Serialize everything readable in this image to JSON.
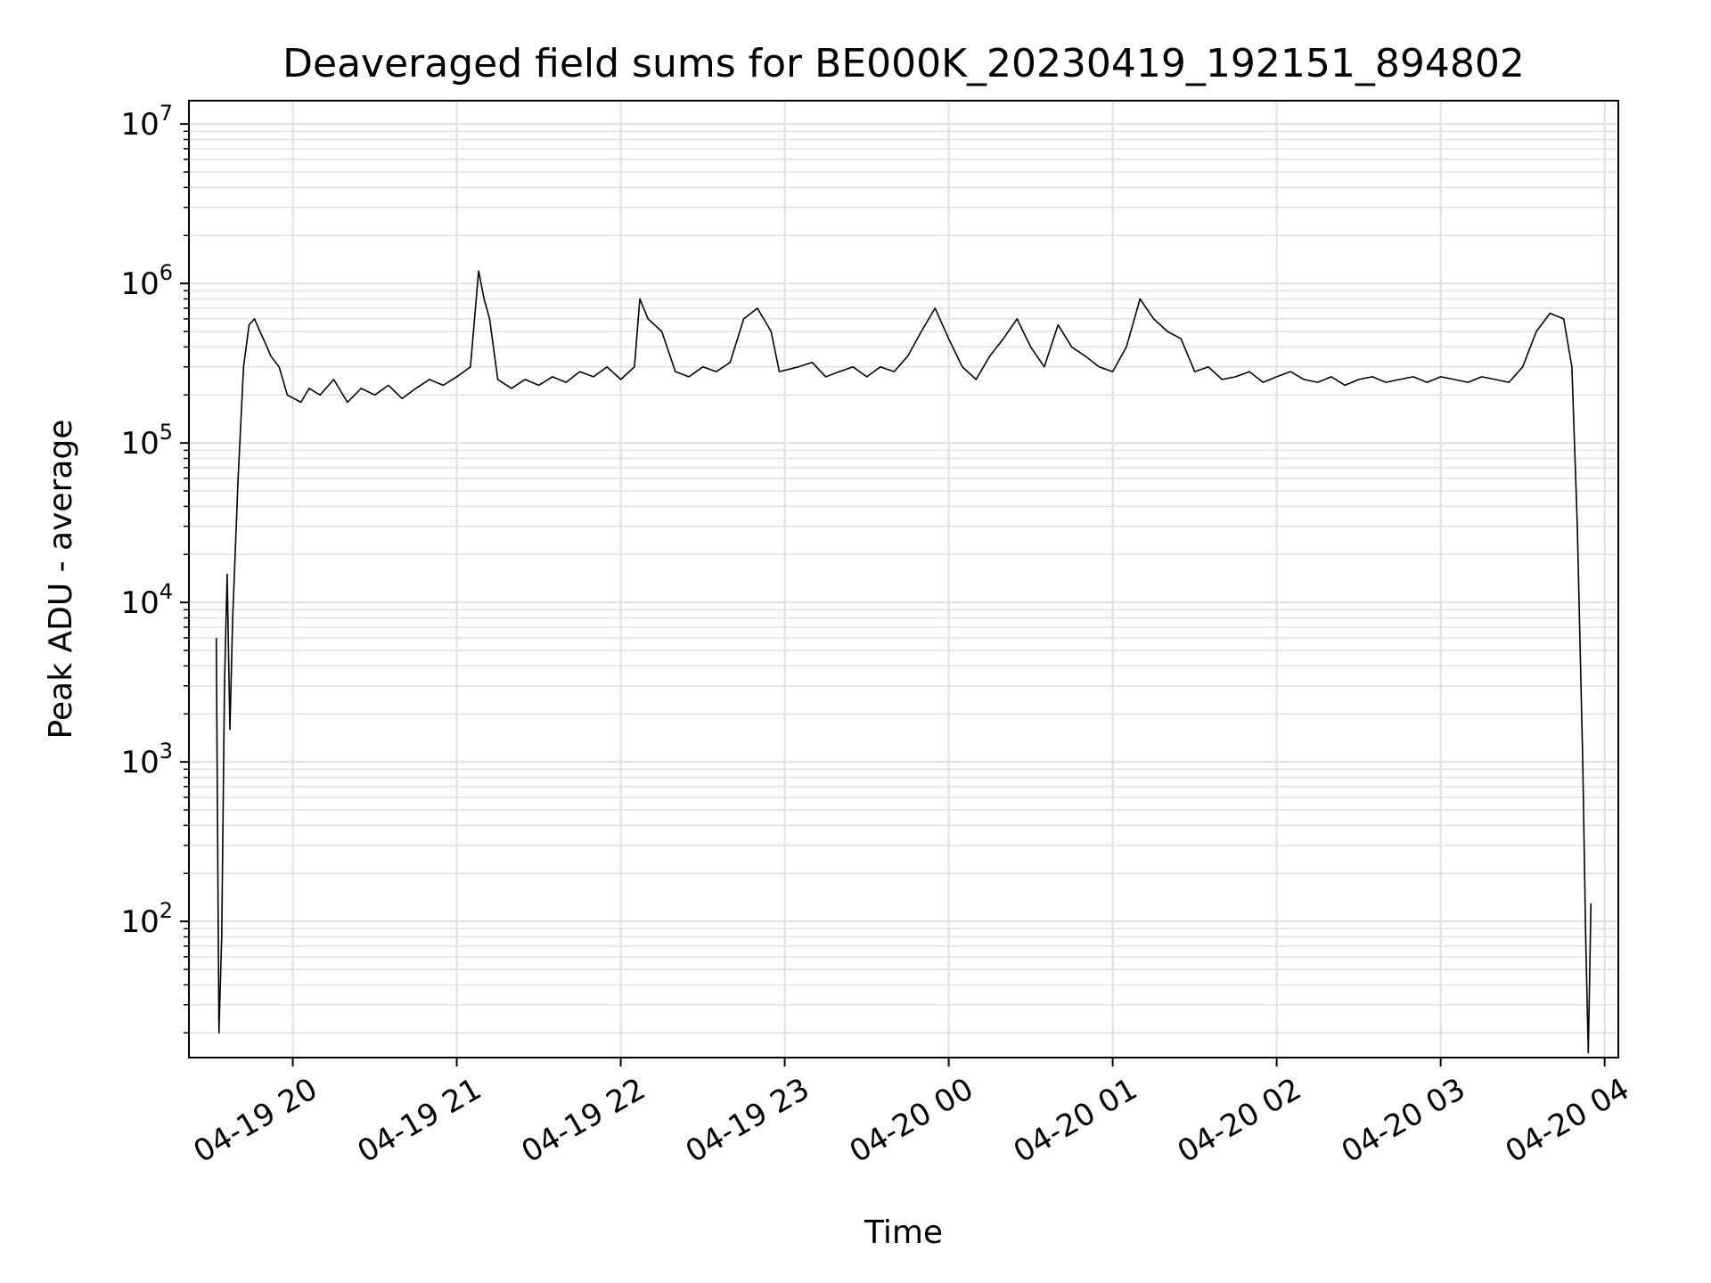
{
  "chart_data": {
    "type": "line",
    "title": "Deaveraged field sums for BE000K_20230419_192151_894802",
    "xlabel": "Time",
    "ylabel": "Peak ADU - average",
    "y_scale": "log",
    "ylim": [
      14,
      14000000
    ],
    "xlim": [
      "2023-04-19 19:22",
      "2023-04-20 04:05"
    ],
    "grid": true,
    "line_color": "#000000",
    "grid_color": "#e0e0e0",
    "x_ticks": [
      {
        "t": "2023-04-19 20:00",
        "label": "04-19 20"
      },
      {
        "t": "2023-04-19 21:00",
        "label": "04-19 21"
      },
      {
        "t": "2023-04-19 22:00",
        "label": "04-19 22"
      },
      {
        "t": "2023-04-19 23:00",
        "label": "04-19 23"
      },
      {
        "t": "2023-04-20 00:00",
        "label": "04-20 00"
      },
      {
        "t": "2023-04-20 01:00",
        "label": "04-20 01"
      },
      {
        "t": "2023-04-20 02:00",
        "label": "04-20 02"
      },
      {
        "t": "2023-04-20 03:00",
        "label": "04-20 03"
      },
      {
        "t": "2023-04-20 04:00",
        "label": "04-20 04"
      }
    ],
    "y_ticks": [
      {
        "value": 100,
        "base": "10",
        "exp": "2"
      },
      {
        "value": 1000,
        "base": "10",
        "exp": "3"
      },
      {
        "value": 10000,
        "base": "10",
        "exp": "4"
      },
      {
        "value": 100000,
        "base": "10",
        "exp": "5"
      },
      {
        "value": 1000000,
        "base": "10",
        "exp": "6"
      },
      {
        "value": 10000000,
        "base": "10",
        "exp": "7"
      }
    ],
    "series": [
      {
        "x": [
          "2023-04-19 19:32",
          "2023-04-19 19:33",
          "2023-04-19 19:34",
          "2023-04-19 19:35",
          "2023-04-19 19:36",
          "2023-04-19 19:37",
          "2023-04-19 19:38",
          "2023-04-19 19:40",
          "2023-04-19 19:42",
          "2023-04-19 19:44",
          "2023-04-19 19:46",
          "2023-04-19 19:48",
          "2023-04-19 19:50",
          "2023-04-19 19:52",
          "2023-04-19 19:55",
          "2023-04-19 19:58",
          "2023-04-19 20:03",
          "2023-04-19 20:06",
          "2023-04-19 20:10",
          "2023-04-19 20:15",
          "2023-04-19 20:20",
          "2023-04-19 20:25",
          "2023-04-19 20:30",
          "2023-04-19 20:35",
          "2023-04-19 20:40",
          "2023-04-19 20:45",
          "2023-04-19 20:50",
          "2023-04-19 20:55",
          "2023-04-19 21:00",
          "2023-04-19 21:05",
          "2023-04-19 21:08",
          "2023-04-19 21:10",
          "2023-04-19 21:12",
          "2023-04-19 21:15",
          "2023-04-19 21:20",
          "2023-04-19 21:25",
          "2023-04-19 21:30",
          "2023-04-19 21:35",
          "2023-04-19 21:40",
          "2023-04-19 21:45",
          "2023-04-19 21:50",
          "2023-04-19 21:55",
          "2023-04-19 22:00",
          "2023-04-19 22:05",
          "2023-04-19 22:07",
          "2023-04-19 22:10",
          "2023-04-19 22:15",
          "2023-04-19 22:20",
          "2023-04-19 22:25",
          "2023-04-19 22:30",
          "2023-04-19 22:35",
          "2023-04-19 22:40",
          "2023-04-19 22:45",
          "2023-04-19 22:50",
          "2023-04-19 22:55",
          "2023-04-19 22:58",
          "2023-04-19 23:05",
          "2023-04-19 23:10",
          "2023-04-19 23:15",
          "2023-04-19 23:20",
          "2023-04-19 23:25",
          "2023-04-19 23:30",
          "2023-04-19 23:35",
          "2023-04-19 23:40",
          "2023-04-19 23:45",
          "2023-04-19 23:50",
          "2023-04-19 23:55",
          "2023-04-20 00:00",
          "2023-04-20 00:05",
          "2023-04-20 00:10",
          "2023-04-20 00:15",
          "2023-04-20 00:20",
          "2023-04-20 00:25",
          "2023-04-20 00:30",
          "2023-04-20 00:35",
          "2023-04-20 00:40",
          "2023-04-20 00:45",
          "2023-04-20 00:50",
          "2023-04-20 00:55",
          "2023-04-20 01:00",
          "2023-04-20 01:05",
          "2023-04-20 01:10",
          "2023-04-20 01:15",
          "2023-04-20 01:20",
          "2023-04-20 01:25",
          "2023-04-20 01:30",
          "2023-04-20 01:35",
          "2023-04-20 01:40",
          "2023-04-20 01:45",
          "2023-04-20 01:50",
          "2023-04-20 01:55",
          "2023-04-20 02:00",
          "2023-04-20 02:05",
          "2023-04-20 02:10",
          "2023-04-20 02:15",
          "2023-04-20 02:20",
          "2023-04-20 02:25",
          "2023-04-20 02:30",
          "2023-04-20 02:35",
          "2023-04-20 02:40",
          "2023-04-20 02:45",
          "2023-04-20 02:50",
          "2023-04-20 02:55",
          "2023-04-20 03:00",
          "2023-04-20 03:05",
          "2023-04-20 03:10",
          "2023-04-20 03:15",
          "2023-04-20 03:20",
          "2023-04-20 03:25",
          "2023-04-20 03:30",
          "2023-04-20 03:35",
          "2023-04-20 03:40",
          "2023-04-20 03:45",
          "2023-04-20 03:48",
          "2023-04-20 03:50",
          "2023-04-20 03:52",
          "2023-04-20 03:53",
          "2023-04-20 03:54",
          "2023-04-20 03:55"
        ],
        "y": [
          6000,
          20,
          80,
          3000,
          15000,
          1600,
          8000,
          60000,
          300000,
          550000,
          600000,
          500000,
          420000,
          350000,
          300000,
          200000,
          180000,
          220000,
          200000,
          250000,
          180000,
          220000,
          200000,
          230000,
          190000,
          220000,
          250000,
          230000,
          260000,
          300000,
          1200000,
          800000,
          600000,
          250000,
          220000,
          250000,
          230000,
          260000,
          240000,
          280000,
          260000,
          300000,
          250000,
          300000,
          800000,
          600000,
          500000,
          280000,
          260000,
          300000,
          280000,
          320000,
          600000,
          700000,
          500000,
          280000,
          300000,
          320000,
          260000,
          280000,
          300000,
          260000,
          300000,
          280000,
          350000,
          500000,
          700000,
          450000,
          300000,
          250000,
          350000,
          450000,
          600000,
          400000,
          300000,
          550000,
          400000,
          350000,
          300000,
          280000,
          400000,
          800000,
          600000,
          500000,
          450000,
          280000,
          300000,
          250000,
          260000,
          280000,
          240000,
          260000,
          280000,
          250000,
          240000,
          260000,
          230000,
          250000,
          260000,
          240000,
          250000,
          260000,
          240000,
          260000,
          250000,
          240000,
          260000,
          250000,
          240000,
          300000,
          500000,
          650000,
          600000,
          300000,
          30000,
          1000,
          90,
          15,
          130
        ]
      }
    ]
  }
}
